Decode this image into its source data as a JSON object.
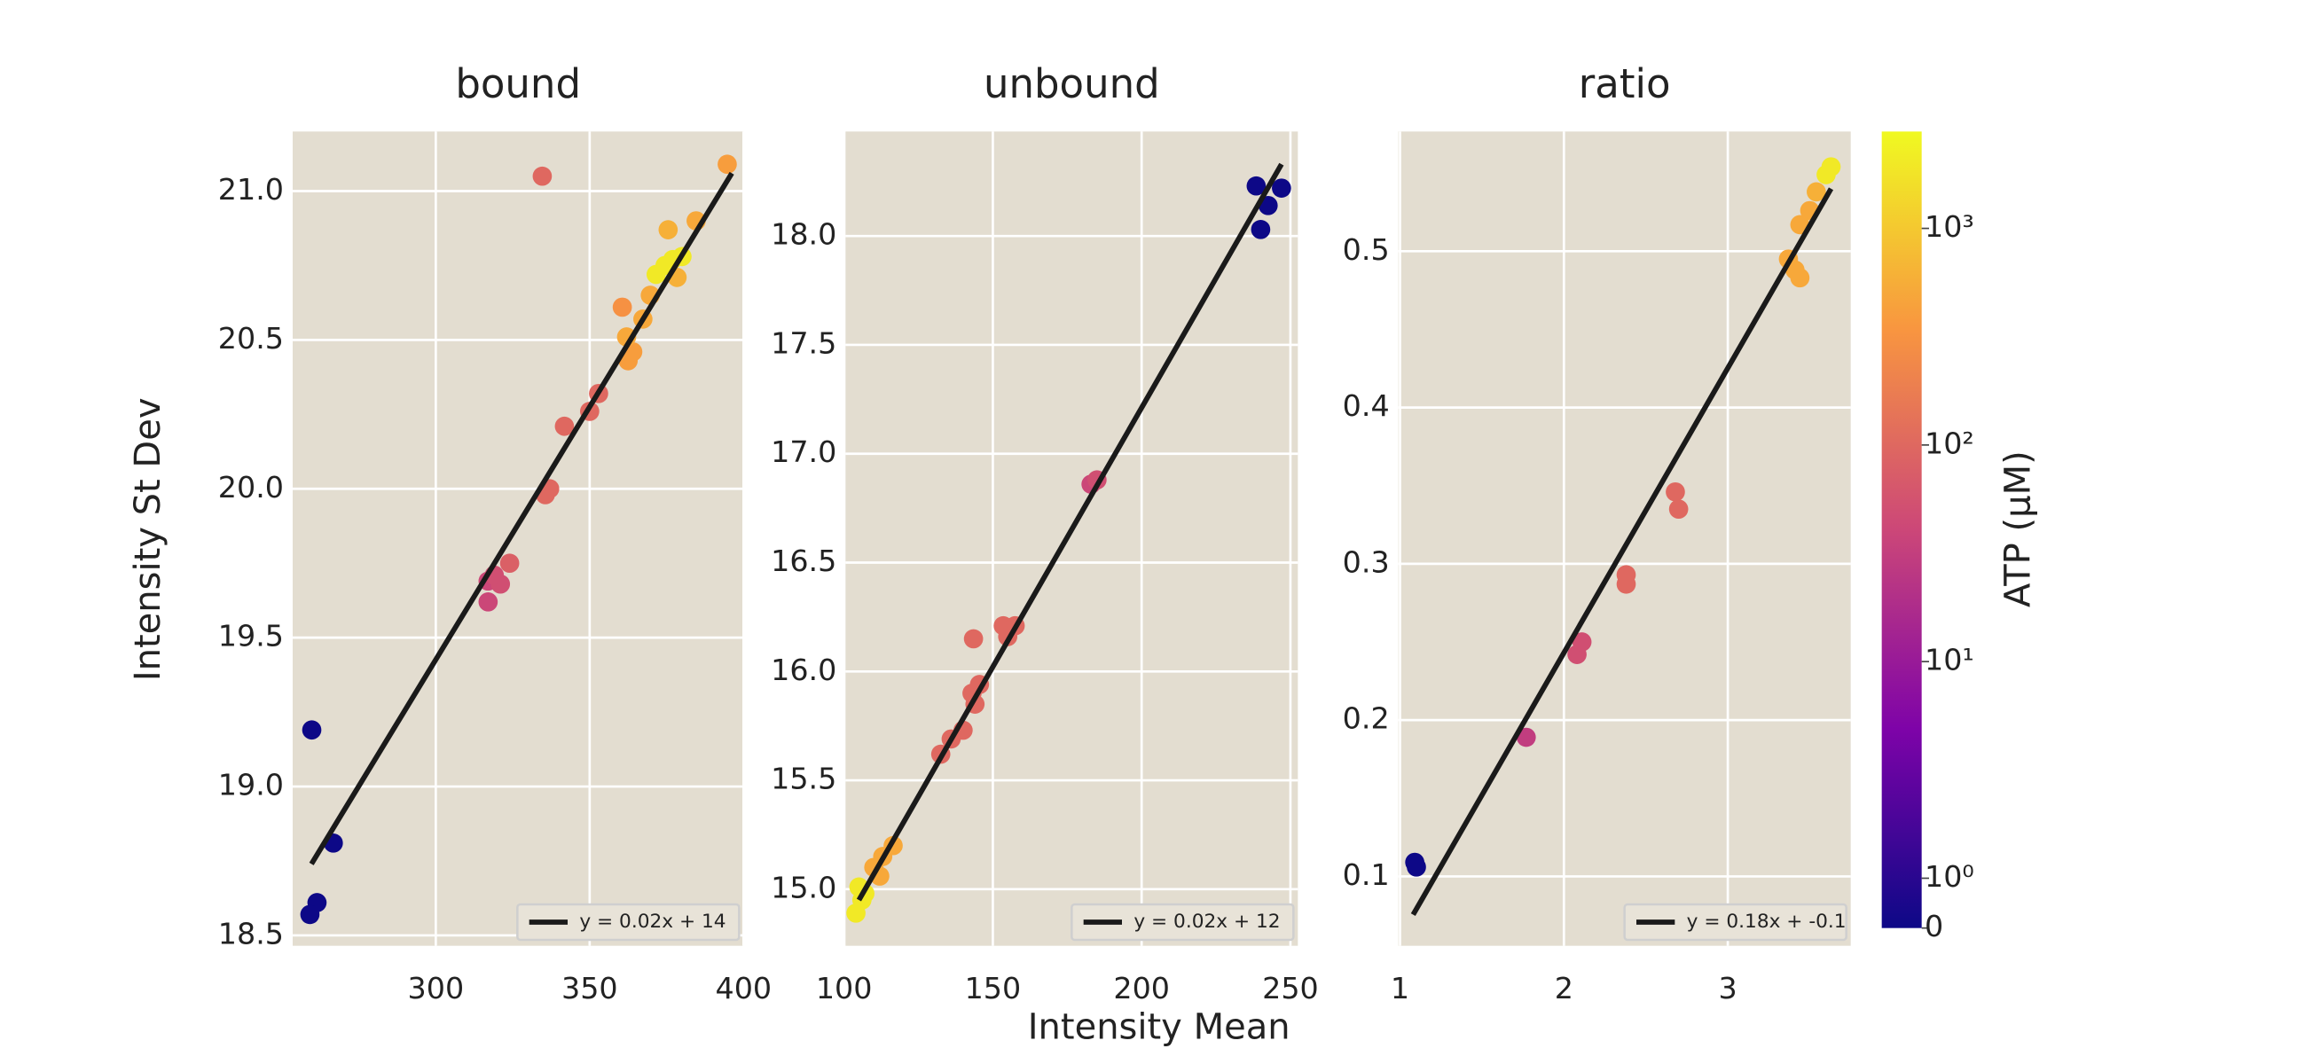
{
  "figure": {
    "xlabel": "Intensity Mean",
    "ylabel": "Intensity St Dev"
  },
  "colorbar": {
    "label": "ATP (µM)",
    "colormap": "plasma",
    "scale": "symlog",
    "clim": [
      0,
      2800
    ],
    "ticks": [
      0,
      {
        "value": 1,
        "label": "10⁰"
      },
      {
        "value": 10,
        "label": "10¹"
      },
      {
        "value": 100,
        "label": "10²"
      },
      {
        "value": 1000,
        "label": "10³"
      }
    ]
  },
  "chart_data": [
    {
      "type": "scatter",
      "title": "bound",
      "grid": true,
      "legend": "lower right",
      "x": [
        259.7,
        266.7,
        261.4,
        259.1,
        334.6,
        317,
        321,
        317,
        324,
        319,
        335.6,
        337,
        341.8,
        350,
        352.9,
        360.6,
        362.5,
        364,
        362,
        367.3,
        369.7,
        371.6,
        374.5,
        377,
        375.5,
        378.4,
        380,
        384.6,
        394.7
      ],
      "y": [
        19.19,
        18.81,
        18.61,
        18.57,
        21.05,
        19.69,
        19.68,
        19.62,
        19.75,
        19.71,
        19.98,
        20.0,
        20.21,
        20.26,
        20.32,
        20.61,
        20.43,
        20.46,
        20.51,
        20.57,
        20.65,
        20.72,
        20.75,
        20.77,
        20.87,
        20.71,
        20.78,
        20.9,
        21.09
      ],
      "c": [
        0,
        0,
        0,
        0,
        100,
        40,
        50,
        40,
        80,
        50,
        100,
        100,
        100,
        100,
        100,
        300,
        400,
        400,
        500,
        500,
        500,
        2000,
        2000,
        2000,
        600,
        600,
        2000,
        500,
        400
      ],
      "fit": {
        "x": [
          259.6,
          396.2
        ],
        "y": [
          18.74,
          21.06
        ],
        "label": "y = 0.02x + 14",
        "color": "#1a1a1a"
      },
      "xlim": [
        253.5,
        400
      ],
      "ylim": [
        18.465,
        21.2
      ],
      "xticks": [
        300,
        350,
        400
      ],
      "yticks": [
        18.5,
        {
          "value": 19,
          "label": "19.0"
        },
        19.5,
        {
          "value": 20,
          "label": "20.0"
        },
        20.5,
        {
          "value": 21,
          "label": "21.0"
        }
      ]
    },
    {
      "type": "scatter",
      "title": "unbound",
      "grid": true,
      "legend": "lower right",
      "x": [
        238.5,
        242.5,
        247,
        240,
        183,
        185,
        143.5,
        153.5,
        157.5,
        155,
        145.5,
        143,
        144,
        140,
        136,
        132.5,
        116.5,
        113,
        110,
        112,
        105,
        106,
        104,
        107
      ],
      "y": [
        18.23,
        18.14,
        18.22,
        18.03,
        16.86,
        16.88,
        16.15,
        16.21,
        16.21,
        16.16,
        15.94,
        15.9,
        15.85,
        15.73,
        15.69,
        15.62,
        15.2,
        15.15,
        15.1,
        15.06,
        15.01,
        14.95,
        14.89,
        14.98
      ],
      "c": [
        0,
        0,
        0,
        0,
        40,
        50,
        100,
        100,
        100,
        100,
        100,
        100,
        100,
        100,
        100,
        100,
        500,
        500,
        500,
        500,
        2000,
        2000,
        2000,
        2000
      ],
      "fit": {
        "x": [
          105,
          247
        ],
        "y": [
          14.95,
          18.33
        ],
        "label": "y = 0.02x + 12",
        "color": "#1a1a1a"
      },
      "xlim": [
        100.5,
        252.5
      ],
      "ylim": [
        14.74,
        18.48
      ],
      "xticks": [
        100,
        150,
        200,
        250
      ],
      "yticks": [
        {
          "value": 15,
          "label": "15.0"
        },
        15.5,
        {
          "value": 16,
          "label": "16.0"
        },
        16.5,
        {
          "value": 17,
          "label": "17.0"
        },
        17.5,
        {
          "value": 18,
          "label": "18.0"
        }
      ]
    },
    {
      "type": "scatter",
      "title": "ratio",
      "grid": true,
      "legend": "lower right",
      "x": [
        1.09,
        1.1,
        1.77,
        2.08,
        2.11,
        2.38,
        2.38,
        2.68,
        2.7,
        3.37,
        3.41,
        3.44,
        3.44,
        3.5,
        3.54,
        3.6,
        3.63
      ],
      "y": [
        0.109,
        0.106,
        0.189,
        0.242,
        0.25,
        0.293,
        0.287,
        0.346,
        0.335,
        0.495,
        0.488,
        0.483,
        0.517,
        0.526,
        0.538,
        0.549,
        0.554
      ],
      "c": [
        0,
        0,
        30,
        50,
        50,
        100,
        100,
        100,
        100,
        500,
        500,
        500,
        500,
        500,
        600,
        2000,
        2000
      ],
      "fit": {
        "x": [
          1.08,
          3.63
        ],
        "y": [
          0.0755,
          0.54
        ],
        "label": "y = 0.18x + -0.1",
        "color": "#1a1a1a"
      },
      "xlim": [
        0.99,
        3.75
      ],
      "ylim": [
        0.0556,
        0.5766
      ],
      "xticks": [
        1,
        2,
        3
      ],
      "yticks": [
        0.1,
        0.2,
        0.3,
        0.4,
        0.5
      ]
    }
  ]
}
